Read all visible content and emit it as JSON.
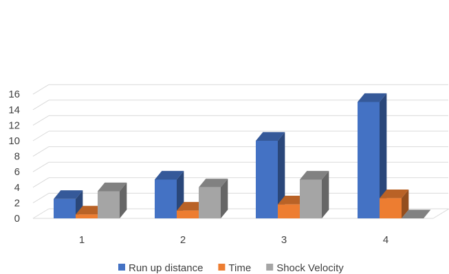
{
  "chart_data": {
    "type": "bar",
    "style": "3d-clustered-column",
    "categories": [
      "1",
      "2",
      "3",
      "4"
    ],
    "series": [
      {
        "name": "Run up distance",
        "values": [
          2.5,
          5,
          10,
          15
        ],
        "color": "#4472C4"
      },
      {
        "name": "Time",
        "values": [
          0.5,
          1,
          1.8,
          2.6
        ],
        "color": "#ED7D31"
      },
      {
        "name": "Shock Velocity",
        "values": [
          3.5,
          4,
          5,
          0
        ],
        "color": "#A5A5A5"
      }
    ],
    "yticks": [
      "0",
      "2",
      "4",
      "6",
      "8",
      "10",
      "12",
      "14",
      "16"
    ],
    "ylim": [
      0,
      16
    ],
    "grid": true,
    "legend_position": "bottom"
  }
}
